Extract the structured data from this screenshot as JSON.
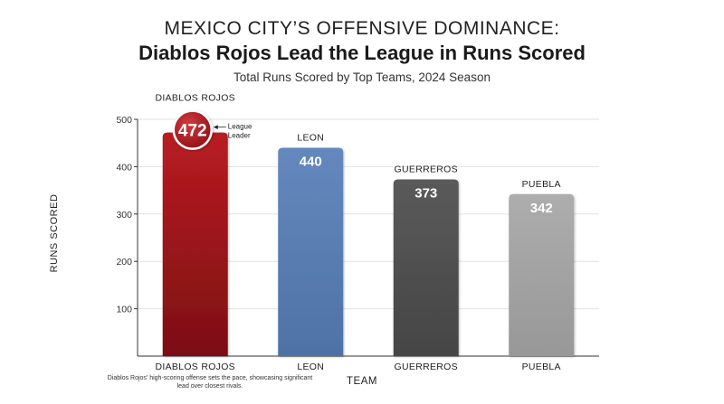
{
  "chart_data": {
    "type": "bar",
    "title_line1": "MEXICO CITY’S OFFENSIVE DOMINANCE:",
    "title_line2": "Diablos Rojos Lead the League in Runs Scored",
    "subtitle": "Total Runs Scored by Top Teams, 2024 Season",
    "xlabel": "TEAM",
    "ylabel": "RUNS SCORED",
    "categories": [
      "DIABLOS ROJOS",
      "LEON",
      "GUERREROS",
      "PUEBLA"
    ],
    "values": [
      472,
      440,
      373,
      342
    ],
    "top_labels": [
      "DIABLOS ROJOS",
      "LEON",
      "GUERREROS",
      "PUEBLA"
    ],
    "colors": [
      "#a0161b",
      "#5a7eb2",
      "#505050",
      "#a3a3a3"
    ],
    "ylim": [
      0,
      500
    ],
    "yticks": [
      100,
      200,
      300,
      400,
      500
    ],
    "grid": true,
    "annotation": {
      "line1": "League",
      "line2": "Leader"
    },
    "note": "Diablos Rojos' high-scoring offense sets the pace, showcasing significant lead over closest rivals."
  }
}
